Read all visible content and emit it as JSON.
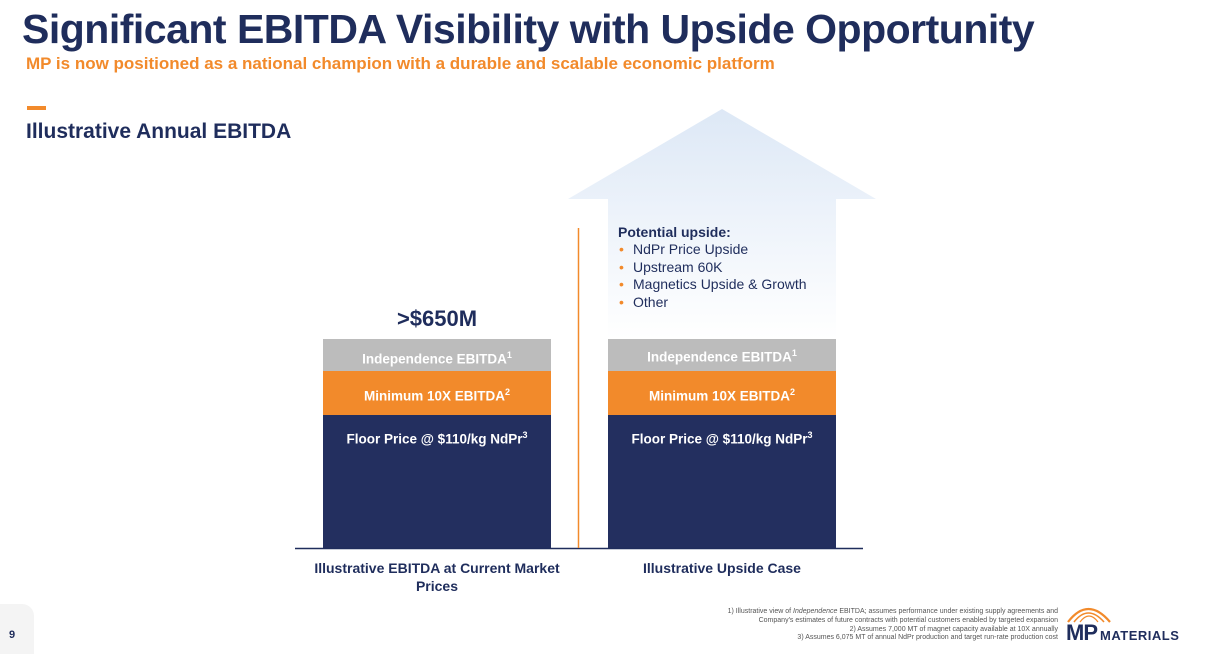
{
  "header": {
    "title": "Significant EBITDA Visibility with Upside Opportunity",
    "subtitle": "MP is now positioned as a national champion with a durable and scalable economic platform",
    "section_title": "Illustrative Annual EBITDA"
  },
  "chart_data": {
    "type": "bar",
    "stacked": true,
    "title": "Illustrative Annual EBITDA",
    "categories": [
      "Illustrative EBITDA at Current Market Prices",
      "Illustrative Upside Case"
    ],
    "series": [
      {
        "name": "Floor Price @ $110/kg NdPr",
        "footnote": "3",
        "color": "#232f5f",
        "values": [
          133,
          133
        ]
      },
      {
        "name": "Minimum 10X EBITDA",
        "footnote": "2",
        "color": "#f28a2b",
        "values": [
          44,
          44
        ]
      },
      {
        "name": "Independence EBITDA",
        "footnote": "1",
        "color": "#bcbcbc",
        "values": [
          32,
          32
        ]
      },
      {
        "name": "Potential upside",
        "color": "#dde8f6",
        "values": [
          0,
          230
        ]
      }
    ],
    "bar_total_labels": [
      ">$650M",
      ""
    ],
    "upside": {
      "title": "Potential upside:",
      "items": [
        "NdPr Price Upside",
        "Upstream 60K",
        "Magnetics Upside & Growth",
        "Other"
      ]
    },
    "ylim": [
      0,
      440
    ],
    "xlabel": "",
    "ylabel": ""
  },
  "footnotes": {
    "line1_pre": "1) Illustrative view of ",
    "line1_italic": "Independence",
    "line1_post": " EBITDA; assumes performance under existing supply agreements and",
    "line2": "Company's estimates of future contracts with potential customers enabled by targeted expansion",
    "line3": "2) Assumes 7,000 MT of magnet capacity available at 10X annually",
    "line4": "3) Assumes 6,075 MT of annual NdPr production and target run-rate production cost"
  },
  "page": {
    "number": "9"
  },
  "logo": {
    "mp": "MP",
    "materials": "MATERIALS"
  },
  "colors": {
    "navy": "#1f2d5c",
    "orange": "#f28a2b",
    "gray": "#bcbcbc",
    "upside": "#dde8f6"
  }
}
